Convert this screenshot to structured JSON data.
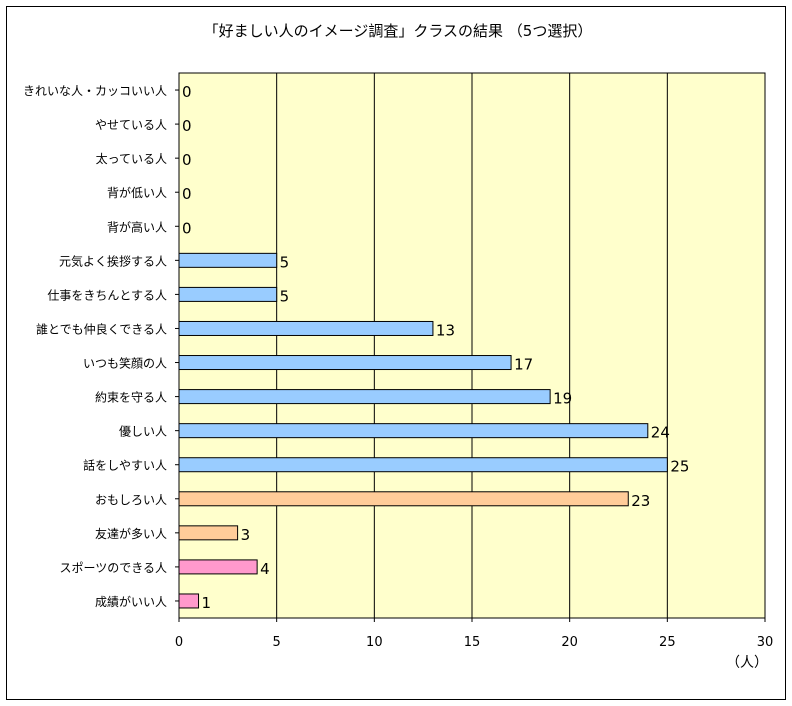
{
  "chart_data": {
    "type": "bar",
    "orientation": "horizontal",
    "title": "「好ましい人のイメージ調査」クラスの結果 （5つ選択）",
    "unit_label": "（人）",
    "categories": [
      "きれいな人・カッコいい人",
      "やせている人",
      "太っている人",
      "背が低い人",
      "背が高い人",
      "元気よく挨拶する人",
      "仕事をきちんとする人",
      "誰とでも仲良くできる人",
      "いつも笑顔の人",
      "約束を守る人",
      "優しい人",
      "話をしやすい人",
      "おもしろい人",
      "友達が多い人",
      "スポーツのできる人",
      "成績がいい人"
    ],
    "values": [
      0,
      0,
      0,
      0,
      0,
      5,
      5,
      13,
      17,
      19,
      24,
      25,
      23,
      3,
      4,
      1
    ],
    "bar_colors": [
      "#99ccff",
      "#99ccff",
      "#99ccff",
      "#99ccff",
      "#99ccff",
      "#99ccff",
      "#99ccff",
      "#99ccff",
      "#99ccff",
      "#99ccff",
      "#99ccff",
      "#99ccff",
      "#ffcc99",
      "#ffcc99",
      "#ff99cc",
      "#ff99cc"
    ],
    "xlim": [
      0,
      30
    ],
    "xticks": [
      0,
      5,
      10,
      15,
      20,
      25,
      30
    ],
    "grid": "vertical",
    "plot_background": "#ffffcc",
    "legend": "none"
  }
}
